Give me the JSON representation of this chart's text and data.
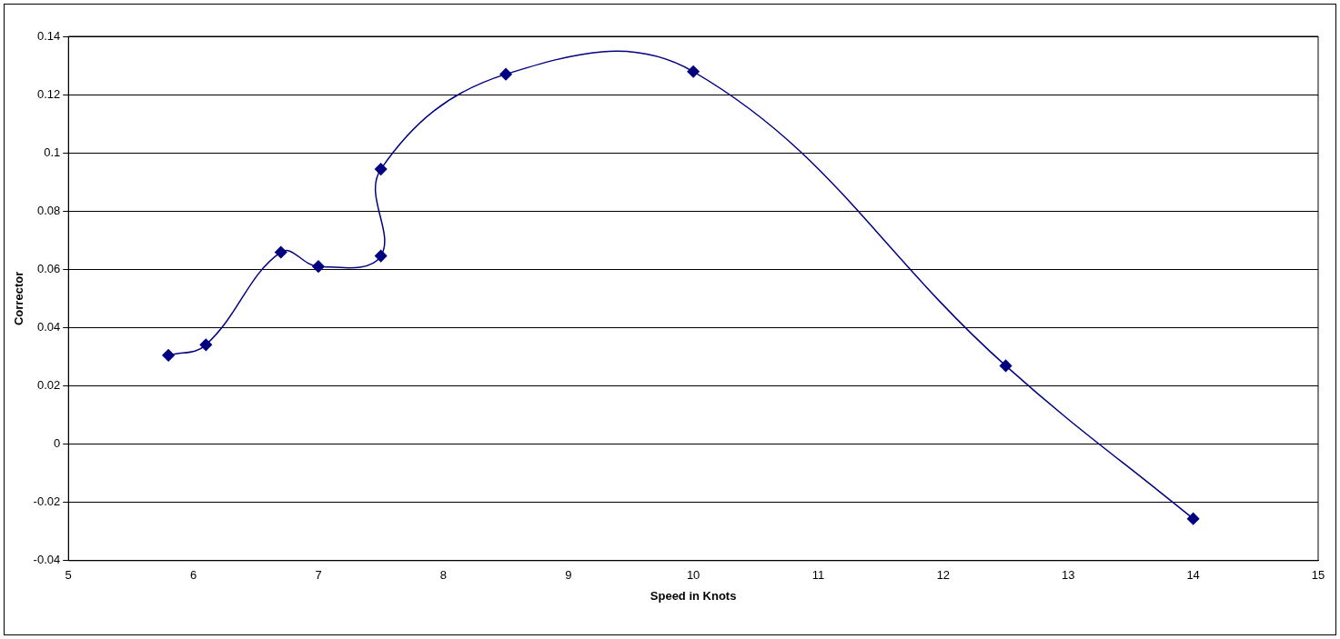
{
  "chart_data": {
    "type": "line",
    "xlabel": "Speed in Knots",
    "ylabel": "Corrector",
    "x": [
      5.8,
      6.1,
      6.7,
      7.0,
      7.5,
      7.5,
      8.5,
      10,
      12.5,
      14
    ],
    "series": [
      {
        "color": "#000080",
        "values": [
          0.0305,
          0.0341,
          0.0659,
          0.061,
          0.0646,
          0.0944,
          0.127,
          0.1279,
          0.0269,
          -0.0256
        ]
      }
    ],
    "xlim": [
      5,
      15
    ],
    "xticks": [
      5,
      6,
      7,
      8,
      9,
      10,
      11,
      12,
      13,
      14,
      15
    ],
    "ylim": [
      -0.04,
      0.14
    ],
    "yticks": [
      -0.04,
      -0.02,
      0,
      0.02,
      0.04,
      0.06,
      0.08,
      0.1,
      0.12,
      0.14
    ],
    "grid": "y",
    "legend": false,
    "marker": "diamond",
    "line_style": "solid"
  }
}
